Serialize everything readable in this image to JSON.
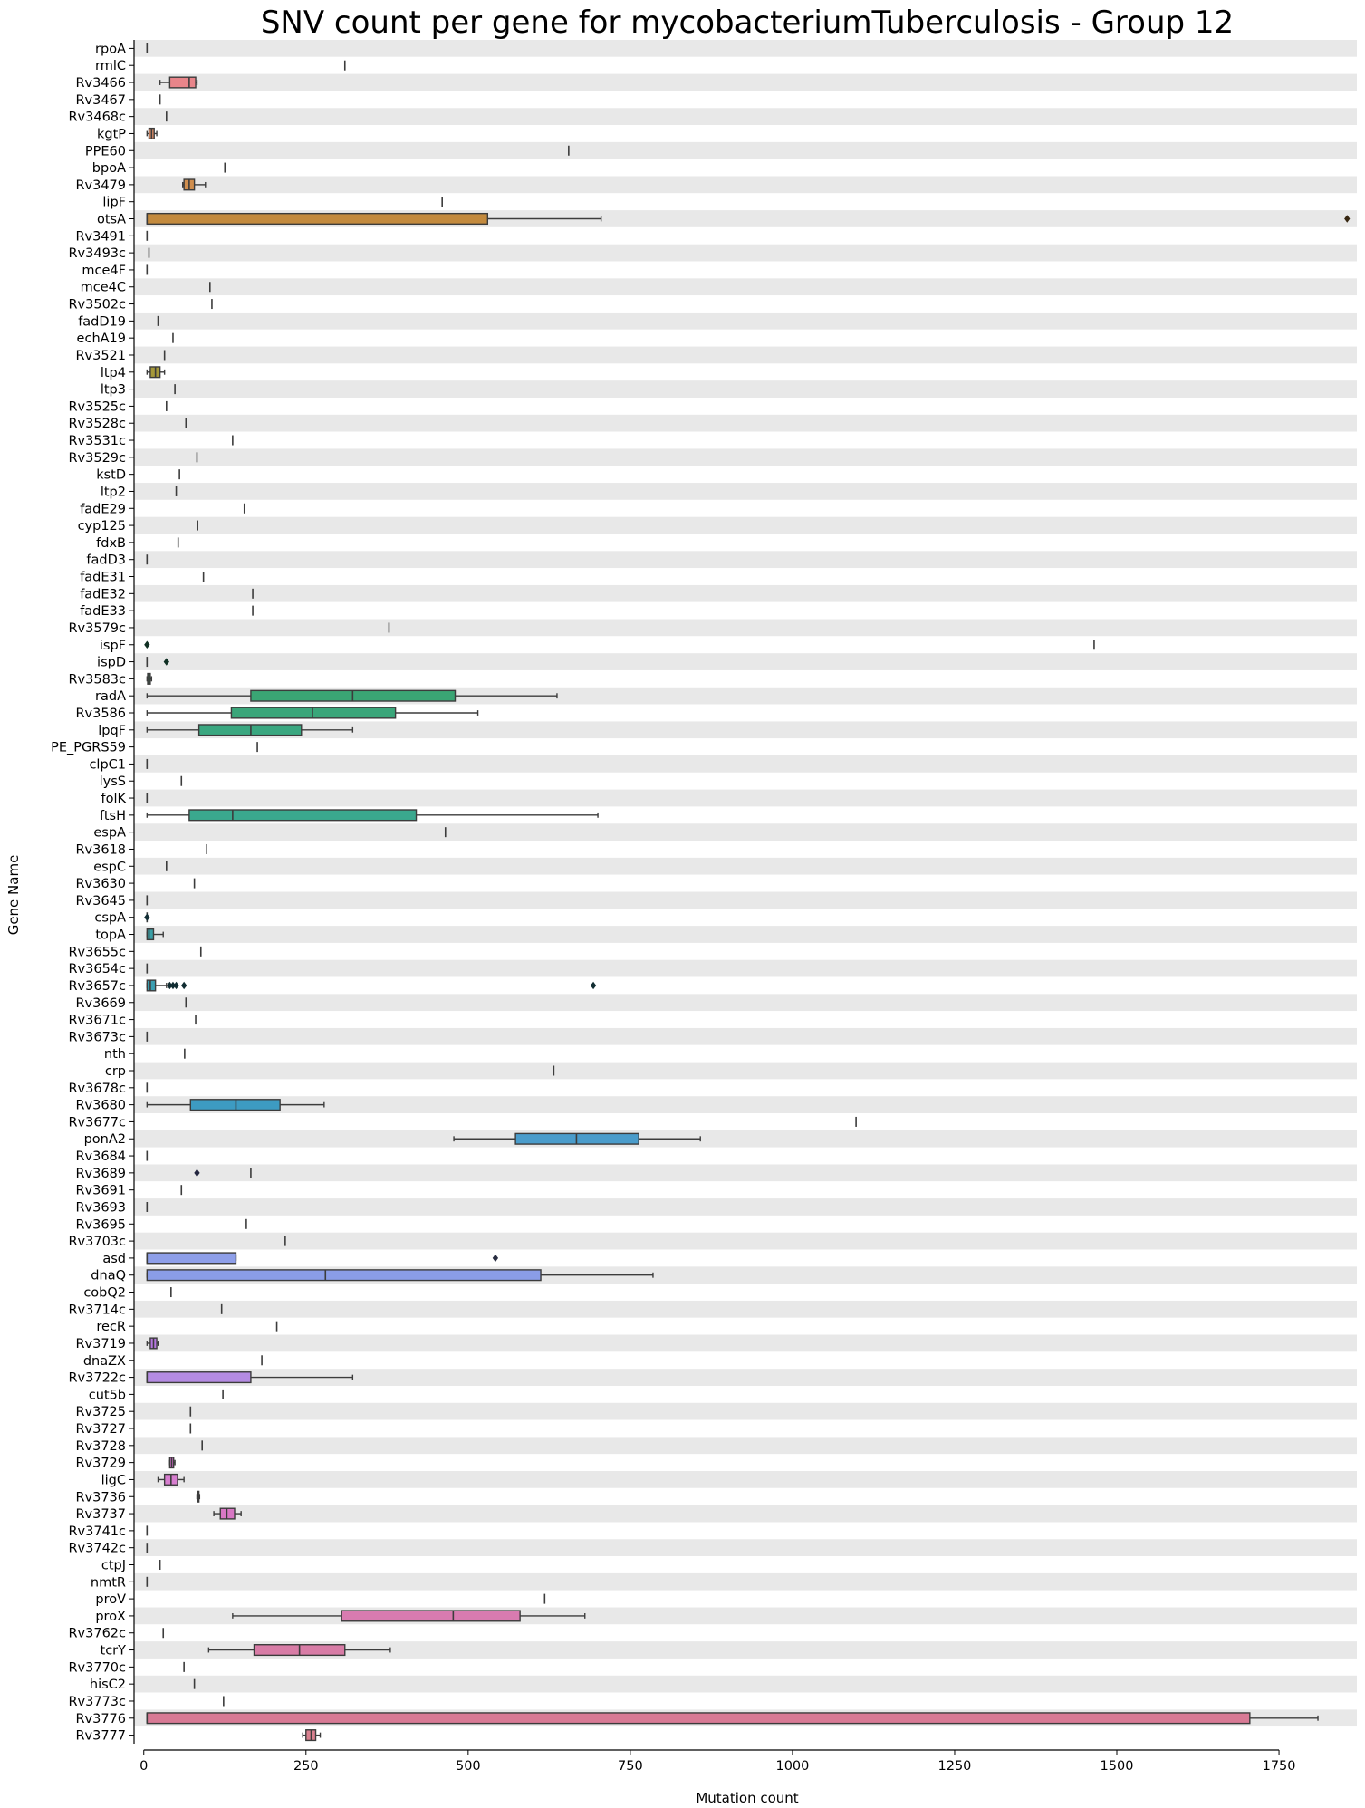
{
  "chart_data": {
    "type": "box",
    "orientation": "horizontal",
    "title": "SNV count per gene for mycobacteriumTuberculosis - Group 12",
    "xlabel": "Mutation count",
    "ylabel": "Gene Name",
    "xlim": [
      -15,
      1870
    ],
    "xticks": [
      0,
      250,
      500,
      750,
      1000,
      1250,
      1500,
      1750
    ],
    "xtick_labels": [
      "0",
      "250",
      "500",
      "750",
      "1000",
      "1250",
      "1500",
      "1750"
    ],
    "row_banding": {
      "even": "#e8e8e8",
      "odd": "#ffffff"
    },
    "boxes": [
      {
        "gene": "rpoA",
        "min": 5,
        "q1": 5,
        "median": 5,
        "q3": 5,
        "max": 5,
        "outliers": [],
        "color": "#e8828a"
      },
      {
        "gene": "rmlC",
        "min": 310,
        "q1": 310,
        "median": 310,
        "q3": 310,
        "max": 310,
        "outliers": [],
        "color": "#e8828a"
      },
      {
        "gene": "Rv3466",
        "min": 25,
        "q1": 40,
        "median": 70,
        "q3": 80,
        "max": 82,
        "outliers": [],
        "color": "#e8858a"
      },
      {
        "gene": "Rv3467",
        "min": 25,
        "q1": 25,
        "median": 25,
        "q3": 25,
        "max": 25,
        "outliers": [],
        "color": "#e58a7a"
      },
      {
        "gene": "Rv3468c",
        "min": 35,
        "q1": 35,
        "median": 35,
        "q3": 35,
        "max": 35,
        "outliers": [],
        "color": "#e08c70"
      },
      {
        "gene": "kgtP",
        "min": 5,
        "q1": 8,
        "median": 12,
        "q3": 16,
        "max": 20,
        "outliers": [],
        "color": "#dc8c66"
      },
      {
        "gene": "PPE60",
        "min": 655,
        "q1": 655,
        "median": 655,
        "q3": 655,
        "max": 655,
        "outliers": [],
        "color": "#d98e5e"
      },
      {
        "gene": "bpoA",
        "min": 125,
        "q1": 125,
        "median": 125,
        "q3": 125,
        "max": 125,
        "outliers": [],
        "color": "#d58f56"
      },
      {
        "gene": "Rv3479",
        "min": 60,
        "q1": 62,
        "median": 70,
        "q3": 78,
        "max": 95,
        "outliers": [],
        "color": "#d08e4e"
      },
      {
        "gene": "lipF",
        "min": 460,
        "q1": 460,
        "median": 460,
        "q3": 460,
        "max": 460,
        "outliers": [],
        "color": "#c98f48"
      },
      {
        "gene": "otsA",
        "min": 5,
        "q1": 5,
        "median": 5,
        "q3": 530,
        "max": 705,
        "outliers": [
          1855
        ],
        "color": "#c38a3e"
      },
      {
        "gene": "Rv3491",
        "min": 5,
        "q1": 5,
        "median": 5,
        "q3": 5,
        "max": 5,
        "outliers": [],
        "color": "#bd8c3e"
      },
      {
        "gene": "Rv3493c",
        "min": 8,
        "q1": 8,
        "median": 8,
        "q3": 8,
        "max": 8,
        "outliers": [],
        "color": "#b78e3e"
      },
      {
        "gene": "mce4F",
        "min": 5,
        "q1": 5,
        "median": 5,
        "q3": 5,
        "max": 5,
        "outliers": [],
        "color": "#b0903e"
      },
      {
        "gene": "mce4C",
        "min": 102,
        "q1": 102,
        "median": 102,
        "q3": 102,
        "max": 102,
        "outliers": [],
        "color": "#a9923e"
      },
      {
        "gene": "Rv3502c",
        "min": 105,
        "q1": 105,
        "median": 105,
        "q3": 105,
        "max": 105,
        "outliers": [],
        "color": "#a2943e"
      },
      {
        "gene": "fadD19",
        "min": 22,
        "q1": 22,
        "median": 22,
        "q3": 22,
        "max": 22,
        "outliers": [],
        "color": "#9b963e"
      },
      {
        "gene": "echA19",
        "min": 45,
        "q1": 45,
        "median": 45,
        "q3": 45,
        "max": 45,
        "outliers": [],
        "color": "#94983e"
      },
      {
        "gene": "Rv3521",
        "min": 32,
        "q1": 32,
        "median": 32,
        "q3": 32,
        "max": 32,
        "outliers": [],
        "color": "#8d9a3e"
      },
      {
        "gene": "ltp4",
        "min": 5,
        "q1": 10,
        "median": 18,
        "q3": 25,
        "max": 32,
        "outliers": [],
        "color": "#a5983a"
      },
      {
        "gene": "ltp3",
        "min": 48,
        "q1": 48,
        "median": 48,
        "q3": 48,
        "max": 48,
        "outliers": [],
        "color": "#7f9e3e"
      },
      {
        "gene": "Rv3525c",
        "min": 35,
        "q1": 35,
        "median": 35,
        "q3": 35,
        "max": 35,
        "outliers": [],
        "color": "#78a03e"
      },
      {
        "gene": "Rv3528c",
        "min": 65,
        "q1": 65,
        "median": 65,
        "q3": 65,
        "max": 65,
        "outliers": [],
        "color": "#70a23e"
      },
      {
        "gene": "Rv3531c",
        "min": 137,
        "q1": 137,
        "median": 137,
        "q3": 137,
        "max": 137,
        "outliers": [],
        "color": "#68a43e"
      },
      {
        "gene": "Rv3529c",
        "min": 82,
        "q1": 82,
        "median": 82,
        "q3": 82,
        "max": 82,
        "outliers": [],
        "color": "#60a640"
      },
      {
        "gene": "kstD",
        "min": 55,
        "q1": 55,
        "median": 55,
        "q3": 55,
        "max": 55,
        "outliers": [],
        "color": "#58a844"
      },
      {
        "gene": "ltp2",
        "min": 50,
        "q1": 50,
        "median": 50,
        "q3": 50,
        "max": 50,
        "outliers": [],
        "color": "#50a948"
      },
      {
        "gene": "fadE29",
        "min": 155,
        "q1": 155,
        "median": 155,
        "q3": 155,
        "max": 155,
        "outliers": [],
        "color": "#48aa4c"
      },
      {
        "gene": "cyp125",
        "min": 83,
        "q1": 83,
        "median": 83,
        "q3": 83,
        "max": 83,
        "outliers": [],
        "color": "#42ab52"
      },
      {
        "gene": "fdxB",
        "min": 53,
        "q1": 53,
        "median": 53,
        "q3": 53,
        "max": 53,
        "outliers": [],
        "color": "#3eab58"
      },
      {
        "gene": "fadD3",
        "min": 5,
        "q1": 5,
        "median": 5,
        "q3": 5,
        "max": 5,
        "outliers": [],
        "color": "#3cab5e"
      },
      {
        "gene": "fadE31",
        "min": 92,
        "q1": 92,
        "median": 92,
        "q3": 92,
        "max": 92,
        "outliers": [],
        "color": "#3aab64"
      },
      {
        "gene": "fadE32",
        "min": 168,
        "q1": 168,
        "median": 168,
        "q3": 168,
        "max": 168,
        "outliers": [],
        "color": "#39ab6a"
      },
      {
        "gene": "fadE33",
        "min": 168,
        "q1": 168,
        "median": 168,
        "q3": 168,
        "max": 168,
        "outliers": [],
        "color": "#38ab70"
      },
      {
        "gene": "Rv3579c",
        "min": 378,
        "q1": 378,
        "median": 378,
        "q3": 378,
        "max": 378,
        "outliers": [],
        "color": "#38ab76"
      },
      {
        "gene": "ispF",
        "min": 1465,
        "q1": 1465,
        "median": 1465,
        "q3": 1465,
        "max": 1465,
        "outliers": [
          5
        ],
        "color": "#38aa7c"
      },
      {
        "gene": "ispD",
        "min": 5,
        "q1": 5,
        "median": 5,
        "q3": 5,
        "max": 5,
        "outliers": [
          35
        ],
        "color": "#38aa82"
      },
      {
        "gene": "Rv3583c",
        "min": 5,
        "q1": 6,
        "median": 8,
        "q3": 10,
        "max": 12,
        "outliers": [],
        "color": "#3a9f72"
      },
      {
        "gene": "radA",
        "min": 5,
        "q1": 165,
        "median": 322,
        "q3": 480,
        "max": 637,
        "outliers": [],
        "color": "#3aa574"
      },
      {
        "gene": "Rv3586",
        "min": 5,
        "q1": 135,
        "median": 260,
        "q3": 388,
        "max": 515,
        "outliers": [],
        "color": "#3aa67a"
      },
      {
        "gene": "lpqF",
        "min": 5,
        "q1": 85,
        "median": 165,
        "q3": 243,
        "max": 322,
        "outliers": [],
        "color": "#3aa780"
      },
      {
        "gene": "PE_PGRS59",
        "min": 175,
        "q1": 175,
        "median": 175,
        "q3": 175,
        "max": 175,
        "outliers": [],
        "color": "#3aa886"
      },
      {
        "gene": "clpC1",
        "min": 5,
        "q1": 5,
        "median": 5,
        "q3": 5,
        "max": 5,
        "outliers": [],
        "color": "#3aa88c"
      },
      {
        "gene": "lysS",
        "min": 58,
        "q1": 58,
        "median": 58,
        "q3": 58,
        "max": 58,
        "outliers": [],
        "color": "#3aa892"
      },
      {
        "gene": "folK",
        "min": 5,
        "q1": 5,
        "median": 5,
        "q3": 5,
        "max": 5,
        "outliers": [],
        "color": "#3aa898"
      },
      {
        "gene": "ftsH",
        "min": 5,
        "q1": 70,
        "median": 137,
        "q3": 420,
        "max": 700,
        "outliers": [],
        "color": "#3aa88e"
      },
      {
        "gene": "espA",
        "min": 465,
        "q1": 465,
        "median": 465,
        "q3": 465,
        "max": 465,
        "outliers": [],
        "color": "#3aa8a4"
      },
      {
        "gene": "Rv3618",
        "min": 97,
        "q1": 97,
        "median": 97,
        "q3": 97,
        "max": 97,
        "outliers": [],
        "color": "#3aa7aa"
      },
      {
        "gene": "espC",
        "min": 35,
        "q1": 35,
        "median": 35,
        "q3": 35,
        "max": 35,
        "outliers": [],
        "color": "#3ba6b0"
      },
      {
        "gene": "Rv3630",
        "min": 78,
        "q1": 78,
        "median": 78,
        "q3": 78,
        "max": 78,
        "outliers": [],
        "color": "#3ca5b5"
      },
      {
        "gene": "Rv3645",
        "min": 5,
        "q1": 5,
        "median": 5,
        "q3": 5,
        "max": 5,
        "outliers": [],
        "color": "#3ea4ba"
      },
      {
        "gene": "cspA",
        "min": 5,
        "q1": 5,
        "median": 5,
        "q3": 5,
        "max": 5,
        "outliers": [
          5
        ],
        "color": "#40a3bf"
      },
      {
        "gene": "topA",
        "min": 5,
        "q1": 5,
        "median": 8,
        "q3": 15,
        "max": 30,
        "outliers": [],
        "color": "#3a9fa6"
      },
      {
        "gene": "Rv3655c",
        "min": 88,
        "q1": 88,
        "median": 88,
        "q3": 88,
        "max": 88,
        "outliers": [],
        "color": "#44a0c8"
      },
      {
        "gene": "Rv3654c",
        "min": 5,
        "q1": 5,
        "median": 5,
        "q3": 5,
        "max": 5,
        "outliers": [],
        "color": "#479fcc"
      },
      {
        "gene": "Rv3657c",
        "min": 5,
        "q1": 5,
        "median": 10,
        "q3": 18,
        "max": 35,
        "outliers": [
          40,
          45,
          50,
          62,
          693
        ],
        "color": "#3b9fb2"
      },
      {
        "gene": "Rv3669",
        "min": 65,
        "q1": 65,
        "median": 65,
        "q3": 65,
        "max": 65,
        "outliers": [],
        "color": "#4d9cd3"
      },
      {
        "gene": "Rv3671c",
        "min": 80,
        "q1": 80,
        "median": 80,
        "q3": 80,
        "max": 80,
        "outliers": [],
        "color": "#519bd6"
      },
      {
        "gene": "Rv3673c",
        "min": 5,
        "q1": 5,
        "median": 5,
        "q3": 5,
        "max": 5,
        "outliers": [],
        "color": "#5599d9"
      },
      {
        "gene": "nth",
        "min": 63,
        "q1": 63,
        "median": 63,
        "q3": 63,
        "max": 63,
        "outliers": [],
        "color": "#5a98db"
      },
      {
        "gene": "crp",
        "min": 632,
        "q1": 632,
        "median": 632,
        "q3": 632,
        "max": 632,
        "outliers": [],
        "color": "#5f96dd"
      },
      {
        "gene": "Rv3678c",
        "min": 5,
        "q1": 5,
        "median": 5,
        "q3": 5,
        "max": 5,
        "outliers": [],
        "color": "#6494df"
      },
      {
        "gene": "Rv3680",
        "min": 5,
        "q1": 72,
        "median": 142,
        "q3": 210,
        "max": 278,
        "outliers": [],
        "color": "#3d9bc2"
      },
      {
        "gene": "Rv3677c",
        "min": 1098,
        "q1": 1098,
        "median": 1098,
        "q3": 1098,
        "max": 1098,
        "outliers": [],
        "color": "#6e90e2"
      },
      {
        "gene": "ponA2",
        "min": 478,
        "q1": 573,
        "median": 667,
        "q3": 763,
        "max": 858,
        "outliers": [],
        "color": "#4a9ccb"
      },
      {
        "gene": "Rv3684",
        "min": 5,
        "q1": 5,
        "median": 5,
        "q3": 5,
        "max": 5,
        "outliers": [],
        "color": "#798ce4"
      },
      {
        "gene": "Rv3689",
        "min": 165,
        "q1": 165,
        "median": 165,
        "q3": 165,
        "max": 165,
        "outliers": [
          82
        ],
        "color": "#7f8ae5"
      },
      {
        "gene": "Rv3691",
        "min": 58,
        "q1": 58,
        "median": 58,
        "q3": 58,
        "max": 58,
        "outliers": [],
        "color": "#8588e6"
      },
      {
        "gene": "Rv3693",
        "min": 5,
        "q1": 5,
        "median": 5,
        "q3": 5,
        "max": 5,
        "outliers": [],
        "color": "#8b86e6"
      },
      {
        "gene": "Rv3695",
        "min": 158,
        "q1": 158,
        "median": 158,
        "q3": 158,
        "max": 158,
        "outliers": [],
        "color": "#9184e6"
      },
      {
        "gene": "Rv3703c",
        "min": 218,
        "q1": 218,
        "median": 218,
        "q3": 218,
        "max": 218,
        "outliers": [],
        "color": "#9782e6"
      },
      {
        "gene": "asd",
        "min": 5,
        "q1": 5,
        "median": 5,
        "q3": 142,
        "max": 142,
        "outliers": [
          542
        ],
        "color": "#8e9fe9"
      },
      {
        "gene": "dnaQ",
        "min": 5,
        "q1": 5,
        "median": 280,
        "q3": 612,
        "max": 785,
        "outliers": [],
        "color": "#8a9de7"
      },
      {
        "gene": "cobQ2",
        "min": 42,
        "q1": 42,
        "median": 42,
        "q3": 42,
        "max": 42,
        "outliers": [],
        "color": "#a57de4"
      },
      {
        "gene": "Rv3714c",
        "min": 120,
        "q1": 120,
        "median": 120,
        "q3": 120,
        "max": 120,
        "outliers": [],
        "color": "#aa7be3"
      },
      {
        "gene": "recR",
        "min": 205,
        "q1": 205,
        "median": 205,
        "q3": 205,
        "max": 205,
        "outliers": [],
        "color": "#b079e2"
      },
      {
        "gene": "Rv3719",
        "min": 5,
        "q1": 10,
        "median": 15,
        "q3": 20,
        "max": 22,
        "outliers": [],
        "color": "#b677e0"
      },
      {
        "gene": "dnaZX",
        "min": 182,
        "q1": 182,
        "median": 182,
        "q3": 182,
        "max": 182,
        "outliers": [],
        "color": "#bb75de"
      },
      {
        "gene": "Rv3722c",
        "min": 5,
        "q1": 5,
        "median": 5,
        "q3": 165,
        "max": 322,
        "outliers": [],
        "color": "#b48be2"
      },
      {
        "gene": "cut5b",
        "min": 122,
        "q1": 122,
        "median": 122,
        "q3": 122,
        "max": 122,
        "outliers": [],
        "color": "#c571da"
      },
      {
        "gene": "Rv3725",
        "min": 72,
        "q1": 72,
        "median": 72,
        "q3": 72,
        "max": 72,
        "outliers": [],
        "color": "#ca70d7"
      },
      {
        "gene": "Rv3727",
        "min": 72,
        "q1": 72,
        "median": 72,
        "q3": 72,
        "max": 72,
        "outliers": [],
        "color": "#ce6fd4"
      },
      {
        "gene": "Rv3728",
        "min": 90,
        "q1": 90,
        "median": 90,
        "q3": 90,
        "max": 90,
        "outliers": [],
        "color": "#d26ed1"
      },
      {
        "gene": "Rv3729",
        "min": 40,
        "q1": 40,
        "median": 43,
        "q3": 46,
        "max": 48,
        "outliers": [],
        "color": "#d56dce"
      },
      {
        "gene": "ligC",
        "min": 22,
        "q1": 32,
        "median": 42,
        "q3": 52,
        "max": 62,
        "outliers": [],
        "color": "#d77ecf"
      },
      {
        "gene": "Rv3736",
        "min": 82,
        "q1": 83,
        "median": 84,
        "q3": 85,
        "max": 86,
        "outliers": [],
        "color": "#da6dc6"
      },
      {
        "gene": "Rv3737",
        "min": 108,
        "q1": 118,
        "median": 128,
        "q3": 140,
        "max": 150,
        "outliers": [],
        "color": "#d877c4"
      },
      {
        "gene": "Rv3741c",
        "min": 5,
        "q1": 5,
        "median": 5,
        "q3": 5,
        "max": 5,
        "outliers": [],
        "color": "#de6ebd"
      },
      {
        "gene": "Rv3742c",
        "min": 5,
        "q1": 5,
        "median": 5,
        "q3": 5,
        "max": 5,
        "outliers": [],
        "color": "#e06fb8"
      },
      {
        "gene": "ctpJ",
        "min": 25,
        "q1": 25,
        "median": 25,
        "q3": 25,
        "max": 25,
        "outliers": [],
        "color": "#e270b3"
      },
      {
        "gene": "nmtR",
        "min": 5,
        "q1": 5,
        "median": 5,
        "q3": 5,
        "max": 5,
        "outliers": [],
        "color": "#e371ae"
      },
      {
        "gene": "proV",
        "min": 618,
        "q1": 618,
        "median": 618,
        "q3": 618,
        "max": 618,
        "outliers": [],
        "color": "#e472a9"
      },
      {
        "gene": "proX",
        "min": 137,
        "q1": 305,
        "median": 477,
        "q3": 580,
        "max": 680,
        "outliers": [],
        "color": "#d87bb0"
      },
      {
        "gene": "Rv3762c",
        "min": 30,
        "q1": 30,
        "median": 30,
        "q3": 30,
        "max": 30,
        "outliers": [],
        "color": "#e575a0"
      },
      {
        "gene": "tcrY",
        "min": 100,
        "q1": 170,
        "median": 240,
        "q3": 310,
        "max": 380,
        "outliers": [],
        "color": "#d87ca6"
      },
      {
        "gene": "Rv3770c",
        "min": 62,
        "q1": 62,
        "median": 62,
        "q3": 62,
        "max": 62,
        "outliers": [],
        "color": "#e57896"
      },
      {
        "gene": "hisC2",
        "min": 78,
        "q1": 78,
        "median": 78,
        "q3": 78,
        "max": 78,
        "outliers": [],
        "color": "#e47a92"
      },
      {
        "gene": "Rv3773c",
        "min": 123,
        "q1": 123,
        "median": 123,
        "q3": 123,
        "max": 123,
        "outliers": [],
        "color": "#e37b8e"
      },
      {
        "gene": "Rv3776",
        "min": 5,
        "q1": 5,
        "median": 5,
        "q3": 1705,
        "max": 1810,
        "outliers": [],
        "color": "#d87a95"
      },
      {
        "gene": "Rv3777",
        "min": 245,
        "q1": 250,
        "median": 258,
        "q3": 265,
        "max": 272,
        "outliers": [],
        "color": "#d9808f"
      }
    ]
  }
}
